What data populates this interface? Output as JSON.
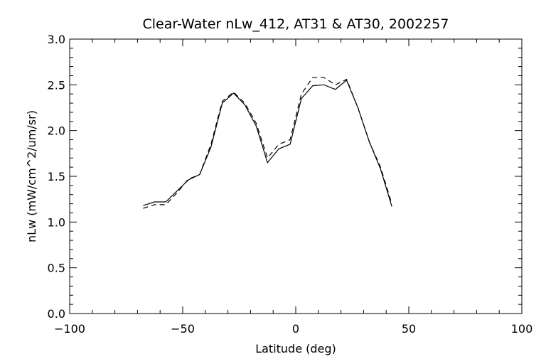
{
  "chart_data": {
    "type": "line",
    "title": "Clear-Water nLw_412, AT31 & AT30, 2002257",
    "xlabel": "Latitude (deg)",
    "ylabel": "nLw (mW/cm^2/um/sr)",
    "xlim": [
      -100,
      100
    ],
    "ylim": [
      0,
      3
    ],
    "xticks": [
      -100,
      -50,
      0,
      50,
      100
    ],
    "xtick_labels": [
      "−100",
      "−50",
      "0",
      "50",
      "100"
    ],
    "yticks": [
      0,
      0.5,
      1,
      1.5,
      2,
      2.5,
      3
    ],
    "ytick_labels": [
      "0.0",
      "0.5",
      "1.0",
      "1.5",
      "2.0",
      "2.5",
      "3.0"
    ],
    "grid": false,
    "x": [
      -67.5,
      -62.5,
      -57.5,
      -52.5,
      -47.5,
      -42.5,
      -37.5,
      -32.5,
      -27.5,
      -22.5,
      -17.5,
      -12.5,
      -7.5,
      -2.5,
      2.5,
      7.5,
      12.5,
      17.5,
      22.5,
      27.5,
      32.5,
      37.5,
      42.5
    ],
    "series": [
      {
        "name": "AT31",
        "style": "solid",
        "values": [
          1.18,
          1.22,
          1.22,
          1.34,
          1.46,
          1.52,
          1.82,
          2.3,
          2.41,
          2.28,
          2.05,
          1.65,
          1.8,
          1.85,
          2.35,
          2.49,
          2.5,
          2.45,
          2.55,
          2.25,
          1.88,
          1.58,
          1.17
        ]
      },
      {
        "name": "AT30",
        "style": "dashed",
        "values": [
          1.15,
          1.19,
          1.19,
          1.32,
          1.47,
          1.52,
          1.85,
          2.32,
          2.42,
          2.3,
          2.08,
          1.7,
          1.85,
          1.9,
          2.4,
          2.58,
          2.58,
          2.5,
          2.56,
          2.25,
          1.88,
          1.6,
          1.2
        ]
      }
    ]
  }
}
